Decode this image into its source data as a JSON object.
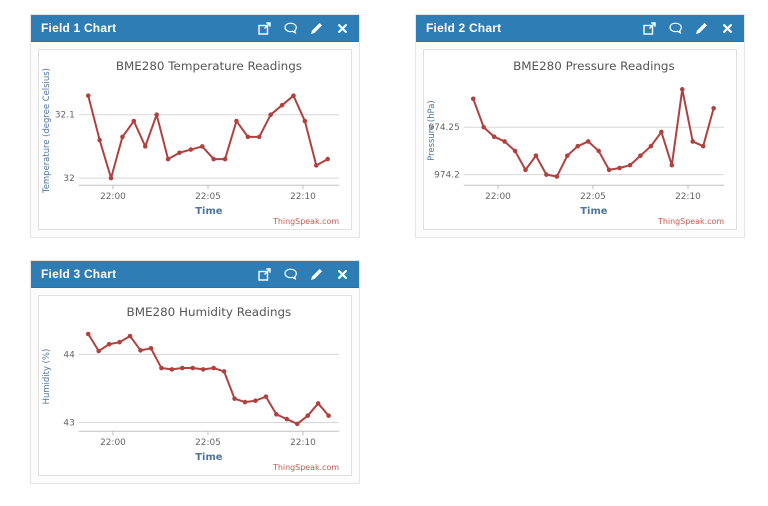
{
  "page": {
    "background": "#ffffff"
  },
  "colors": {
    "header_bg": "#2e7db4",
    "header_border": "#2972a5",
    "line": "#b0413e",
    "marker": "#b0413e",
    "credit": "#cb5850",
    "axis_label": "#4d759e",
    "tick_label": "#666666",
    "title": "#555555",
    "grid": "#d8d8d8",
    "axis_line": "#c0c0c0"
  },
  "header_icons": [
    "external-link",
    "comment",
    "edit",
    "close"
  ],
  "panels": [
    {
      "header": {
        "title": "Field 1 Chart"
      },
      "chart_data": {
        "type": "line",
        "title": "BME280 Temperature Readings",
        "xlabel": "Time",
        "ylabel": "Temperature (degree Celsius)",
        "credit": "ThingSpeak.com",
        "legend": "none",
        "grid": true,
        "x_start_minutes": -1.3,
        "x_step_minutes": 0.6,
        "values": [
          32.13,
          32.06,
          32.0,
          32.065,
          32.09,
          32.05,
          32.1,
          32.03,
          32.04,
          32.045,
          32.05,
          32.03,
          32.03,
          32.09,
          32.065,
          32.065,
          32.1,
          32.115,
          32.13,
          32.09,
          32.02,
          32.03
        ],
        "ylim": [
          31.995,
          32.155
        ],
        "yticks": [
          {
            "value": 32,
            "label": "32"
          },
          {
            "value": 32.1,
            "label": "32.1"
          }
        ],
        "xlim": [
          -1.8,
          11.9
        ],
        "xticks": [
          {
            "value": 0,
            "label": "22:00"
          },
          {
            "value": 5,
            "label": "22:05"
          },
          {
            "value": 10,
            "label": "22:10"
          }
        ]
      }
    },
    {
      "header": {
        "title": "Field 2 Chart"
      },
      "chart_data": {
        "type": "line",
        "title": "BME280 Pressure Readings",
        "xlabel": "Time",
        "ylabel": "Pressure (hPa)",
        "credit": "ThingSpeak.com",
        "legend": "none",
        "grid": true,
        "x_start_minutes": -1.3,
        "x_step_minutes": 0.55,
        "values": [
          974.28,
          974.25,
          974.24,
          974.235,
          974.225,
          974.205,
          974.22,
          974.2,
          974.198,
          974.22,
          974.23,
          974.235,
          974.225,
          974.205,
          974.207,
          974.21,
          974.22,
          974.23,
          974.245,
          974.21,
          974.29,
          974.235,
          974.23,
          974.27
        ],
        "ylim": [
          974.193,
          974.3
        ],
        "yticks": [
          {
            "value": 974.2,
            "label": "974.2"
          },
          {
            "value": 974.25,
            "label": "974.25"
          }
        ],
        "xlim": [
          -1.8,
          11.9
        ],
        "xticks": [
          {
            "value": 0,
            "label": "22:00"
          },
          {
            "value": 5,
            "label": "22:05"
          },
          {
            "value": 10,
            "label": "22:10"
          }
        ]
      }
    },
    {
      "header": {
        "title": "Field 3 Chart"
      },
      "chart_data": {
        "type": "line",
        "title": "BME280 Humidity Readings",
        "xlabel": "Time",
        "ylabel": "Humidity (%)",
        "credit": "ThingSpeak.com",
        "legend": "none",
        "grid": true,
        "x_start_minutes": -1.3,
        "x_step_minutes": 0.55,
        "values": [
          44.3,
          44.05,
          44.15,
          44.18,
          44.27,
          44.06,
          44.09,
          43.8,
          43.78,
          43.8,
          43.8,
          43.78,
          43.8,
          43.75,
          43.35,
          43.3,
          43.32,
          43.38,
          43.12,
          43.05,
          42.98,
          43.1,
          43.28,
          43.1
        ],
        "ylim": [
          42.93,
          44.42
        ],
        "yticks": [
          {
            "value": 43,
            "label": "43"
          },
          {
            "value": 44,
            "label": "44"
          }
        ],
        "xlim": [
          -1.8,
          11.9
        ],
        "xticks": [
          {
            "value": 0,
            "label": "22:00"
          },
          {
            "value": 5,
            "label": "22:05"
          },
          {
            "value": 10,
            "label": "22:10"
          }
        ]
      }
    }
  ]
}
